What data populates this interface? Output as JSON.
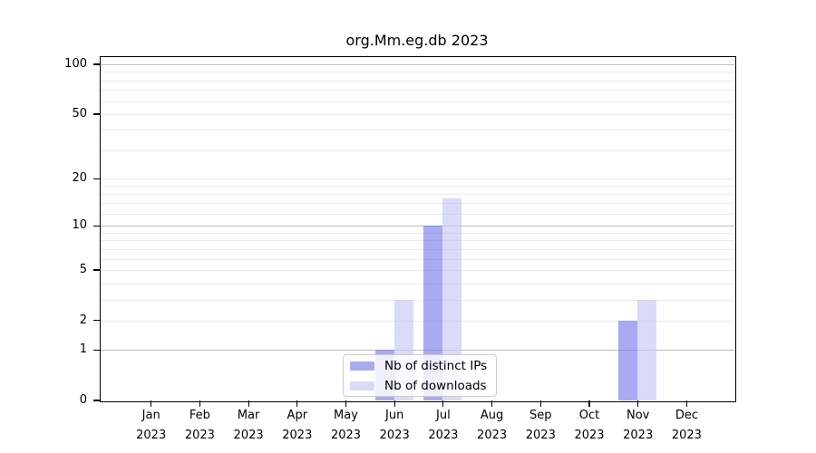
{
  "chart_data": {
    "type": "bar",
    "title": "org.Mm.eg.db 2023",
    "year_label": "2023",
    "categories": [
      "Jan",
      "Feb",
      "Mar",
      "Apr",
      "May",
      "Jun",
      "Jul",
      "Aug",
      "Sep",
      "Oct",
      "Nov",
      "Dec"
    ],
    "series": [
      {
        "name": "Nb of distinct IPs",
        "color": "rgba(113,113,234,0.6)",
        "swatch_color": "#aaaaf0",
        "values": [
          0,
          0,
          0,
          0,
          0,
          1,
          10,
          0,
          0,
          0,
          2,
          0
        ]
      },
      {
        "name": "Nb of downloads",
        "color": "rgba(193,193,245,0.6)",
        "swatch_color": "#d9d9f8",
        "values": [
          0,
          0,
          0,
          0,
          0,
          3,
          15,
          0,
          0,
          0,
          3,
          0
        ]
      }
    ],
    "xlabel": "",
    "ylabel": "",
    "yscale": "log1p",
    "ylim": [
      0,
      112
    ],
    "yticks": [
      0,
      1,
      2,
      5,
      10,
      20,
      50,
      100
    ],
    "grid": {
      "on": true,
      "major_lines": [
        1,
        10,
        100
      ],
      "minor_lines": [
        2,
        3,
        4,
        5,
        6,
        7,
        8,
        9,
        12,
        14,
        16,
        18,
        20,
        30,
        40,
        50,
        60,
        70,
        80,
        90
      ],
      "major_color": "#bdbdbd",
      "minor_color": "#ebebeb"
    },
    "legend": {
      "position": "lower center inside",
      "background": "rgba(255,255,255,0.8)",
      "border_color": "#cccccc"
    },
    "axis_color": "#000000",
    "background_color": "#ffffff"
  }
}
